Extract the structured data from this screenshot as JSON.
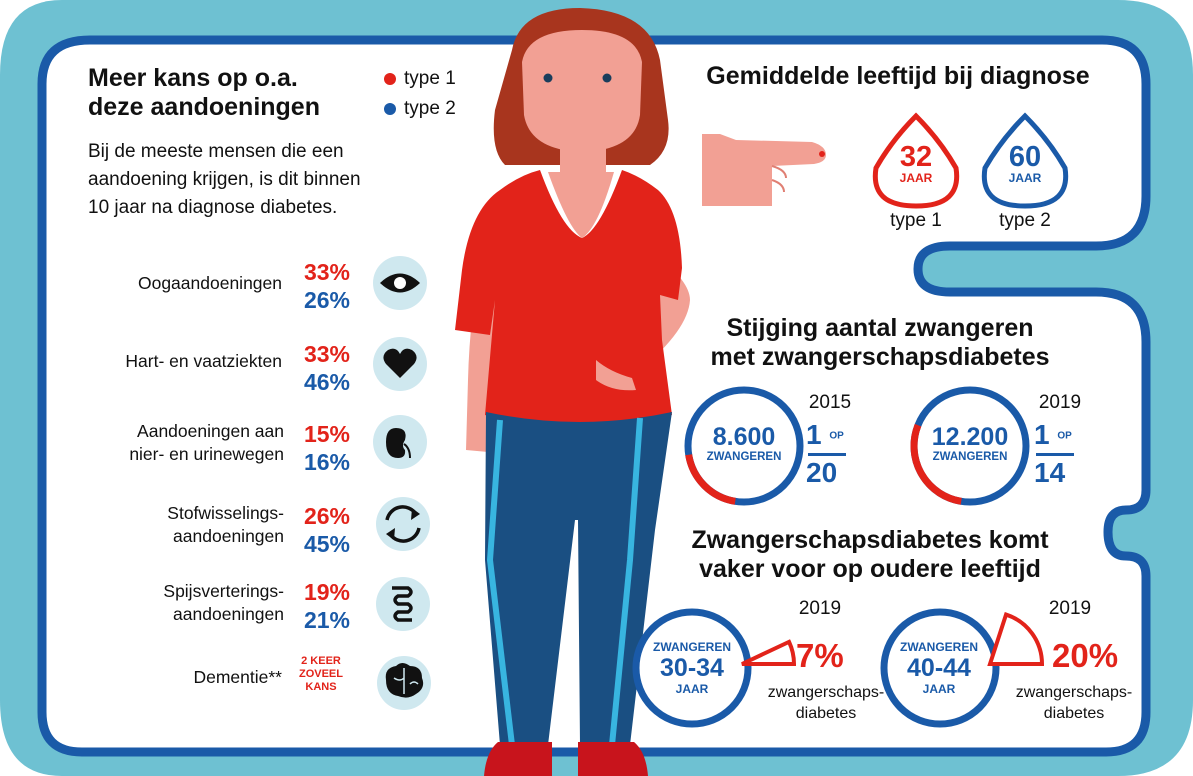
{
  "colors": {
    "frame": "#6ec1d2",
    "frame_border": "#1a5aa8",
    "type1": "#e2231a",
    "type2": "#1a5aa8",
    "skin": "#f2a094",
    "hair": "#a8351e",
    "shirt": "#e2231a",
    "pants": "#1a4f82",
    "icon_bg": "#cfe8ef"
  },
  "left": {
    "heading": [
      "Meer kans op o.a.",
      "deze aandoeningen"
    ],
    "legend": [
      {
        "label": "type 1",
        "color": "#e2231a"
      },
      {
        "label": "type 2",
        "color": "#1a5aa8"
      }
    ],
    "intro": [
      "Bij de meeste mensen die een",
      "aandoening krijgen, is dit binnen",
      "10 jaar na diagnose diabetes."
    ],
    "conditions": [
      {
        "label": [
          "Oogaandoeningen"
        ],
        "type1": "33%",
        "type2": "26%",
        "icon": "eye-icon"
      },
      {
        "label": [
          "Hart- en vaatziekten"
        ],
        "type1": "33%",
        "type2": "46%",
        "icon": "heart-icon"
      },
      {
        "label": [
          "Aandoeningen aan",
          "nier- en urinewegen"
        ],
        "type1": "15%",
        "type2": "16%",
        "icon": "kidney-icon"
      },
      {
        "label": [
          "Stofwisselings-",
          "aandoeningen"
        ],
        "type1": "26%",
        "type2": "45%",
        "icon": "cycle-arrows-icon"
      },
      {
        "label": [
          "Spijsverterings-",
          "aandoeningen"
        ],
        "type1": "19%",
        "type2": "21%",
        "icon": "intestine-icon"
      },
      {
        "label": [
          "Dementie**"
        ],
        "kans": [
          "2 KEER",
          "ZOVEEL",
          "KANS"
        ],
        "icon": "brain-icon"
      }
    ]
  },
  "age": {
    "heading": "Gemiddelde leeftijd bij diagnose",
    "drops": [
      {
        "value": "32",
        "unit": "JAAR",
        "label": "type 1",
        "color": "#e2231a"
      },
      {
        "value": "60",
        "unit": "JAAR",
        "label": "type 2",
        "color": "#1a5aa8"
      }
    ]
  },
  "pregnancy_rise": {
    "heading": [
      "Stijging aantal zwangeren",
      "met zwangerschapsdiabetes"
    ],
    "items": [
      {
        "year": "2015",
        "count": "8.600",
        "count_label": "ZWANGEREN",
        "numerator": "1",
        "op": "OP",
        "denominator": "20",
        "share": 0.05
      },
      {
        "year": "2019",
        "count": "12.200",
        "count_label": "ZWANGEREN",
        "numerator": "1",
        "op": "OP",
        "denominator": "14",
        "share": 0.0714
      }
    ]
  },
  "pregnancy_age": {
    "heading": [
      "Zwangerschapsdiabetes komt",
      "vaker voor op oudere leeftijd"
    ],
    "items": [
      {
        "year": "2019",
        "top": "ZWANGEREN",
        "ages": "30-34",
        "bottom": "JAAR",
        "percent": "7%",
        "share": 0.07,
        "caption": [
          "zwangerschaps-",
          "diabetes"
        ]
      },
      {
        "year": "2019",
        "top": "ZWANGEREN",
        "ages": "40-44",
        "bottom": "JAAR",
        "percent": "20%",
        "share": 0.2,
        "caption": [
          "zwangerschaps-",
          "diabetes"
        ]
      }
    ]
  }
}
